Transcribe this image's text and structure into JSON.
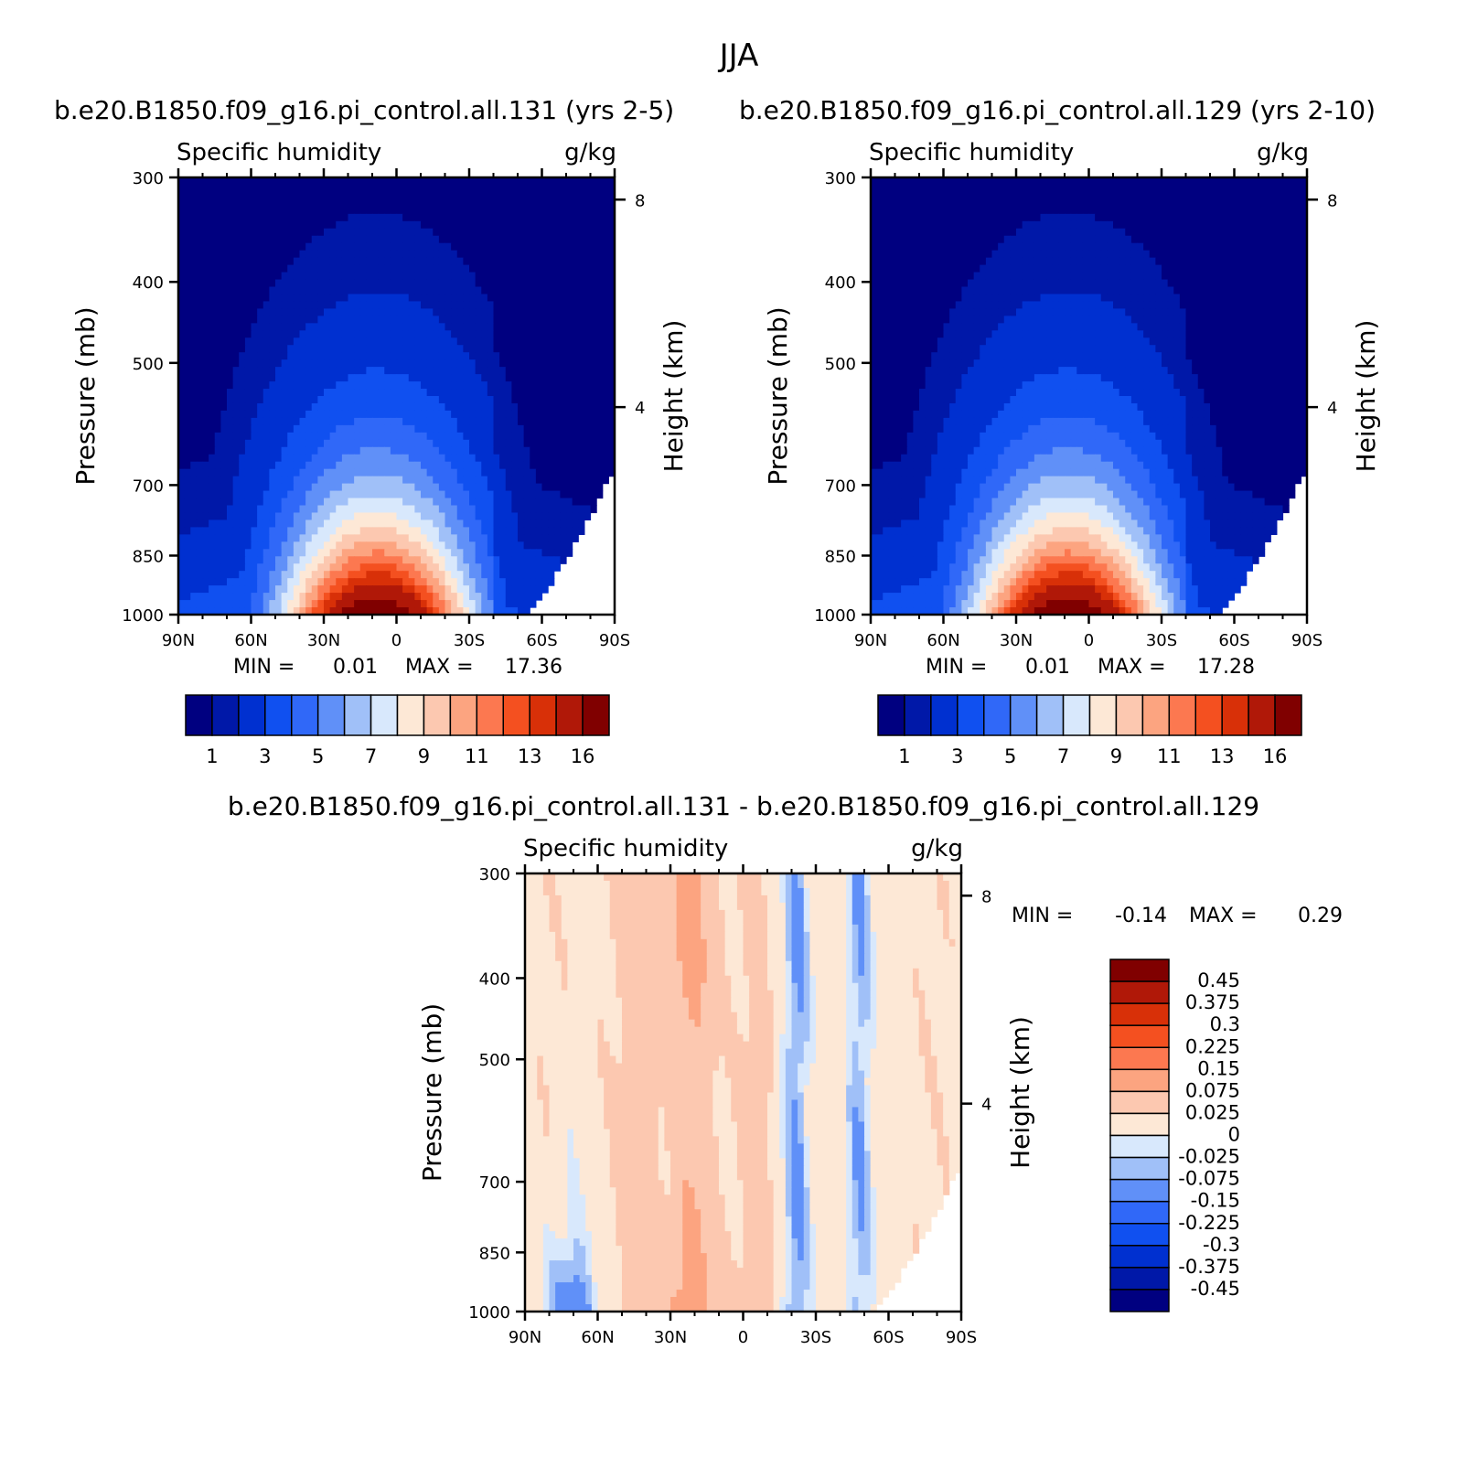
{
  "figure_title": "JJA",
  "x_tick_labels": [
    "90N",
    "60N",
    "30N",
    "0",
    "30S",
    "60S",
    "90S"
  ],
  "y_tick_labels": [
    "300",
    "400",
    "500",
    "700",
    "850",
    "1000"
  ],
  "height_tick_labels": [
    "8",
    "4"
  ],
  "chart_data": [
    {
      "type": "heatmap",
      "title": "b.e20.B1850.f09_g16.pi_control.all.131 (yrs 2-5)",
      "left_subtitle": "Specific humidity",
      "right_subtitle": "g/kg",
      "ylabel": "Pressure (mb)",
      "y2label": "Height (km)",
      "min_label": "MIN =",
      "min_value": "0.01",
      "max_label": "MAX =",
      "max_value": "17.36",
      "xlim": [
        90,
        -90
      ],
      "ylim": [
        1000,
        300
      ],
      "colorbar_labels": [
        "1",
        "3",
        "5",
        "7",
        "9",
        "11",
        "13",
        "16"
      ],
      "colors": [
        "#000080",
        "#0018a8",
        "#0030d0",
        "#1050f0",
        "#3068f8",
        "#6090f8",
        "#a0c0f8",
        "#d8e8fc",
        "#fde8d6",
        "#fcc8b0",
        "#fca480",
        "#fc7850",
        "#f45020",
        "#d83008",
        "#b01808",
        "#800000"
      ]
    },
    {
      "type": "heatmap",
      "title": "b.e20.B1850.f09_g16.pi_control.all.129 (yrs 2-10)",
      "left_subtitle": "Specific humidity",
      "right_subtitle": "g/kg",
      "ylabel": "Pressure (mb)",
      "y2label": "Height (km)",
      "min_label": "MIN =",
      "min_value": "0.01",
      "max_label": "MAX =",
      "max_value": "17.28",
      "xlim": [
        90,
        -90
      ],
      "ylim": [
        1000,
        300
      ],
      "colorbar_labels": [
        "1",
        "3",
        "5",
        "7",
        "9",
        "11",
        "13",
        "16"
      ],
      "colors": [
        "#000080",
        "#0018a8",
        "#0030d0",
        "#1050f0",
        "#3068f8",
        "#6090f8",
        "#a0c0f8",
        "#d8e8fc",
        "#fde8d6",
        "#fcc8b0",
        "#fca480",
        "#fc7850",
        "#f45020",
        "#d83008",
        "#b01808",
        "#800000"
      ]
    },
    {
      "type": "heatmap",
      "title": "b.e20.B1850.f09_g16.pi_control.all.131 - b.e20.B1850.f09_g16.pi_control.all.129",
      "left_subtitle": "Specific humidity",
      "right_subtitle": "g/kg",
      "ylabel": "Pressure (mb)",
      "y2label": "Height (km)",
      "min_label": "MIN =",
      "min_value": "-0.14",
      "max_label": "MAX =",
      "max_value": "0.29",
      "xlim": [
        90,
        -90
      ],
      "ylim": [
        1000,
        300
      ],
      "colorbar_labels": [
        "0.45",
        "0.375",
        "0.3",
        "0.225",
        "0.15",
        "0.075",
        "0.025",
        "0",
        "-0.025",
        "-0.075",
        "-0.15",
        "-0.225",
        "-0.3",
        "-0.375",
        "-0.45"
      ],
      "colors": [
        "#800000",
        "#b01808",
        "#d83008",
        "#f45020",
        "#fc7850",
        "#fca480",
        "#fcc8b0",
        "#fde8d6",
        "#d8e8fc",
        "#a0c0f8",
        "#6090f8",
        "#3068f8",
        "#1050f0",
        "#0030d0",
        "#0018a8",
        "#000080"
      ]
    }
  ]
}
